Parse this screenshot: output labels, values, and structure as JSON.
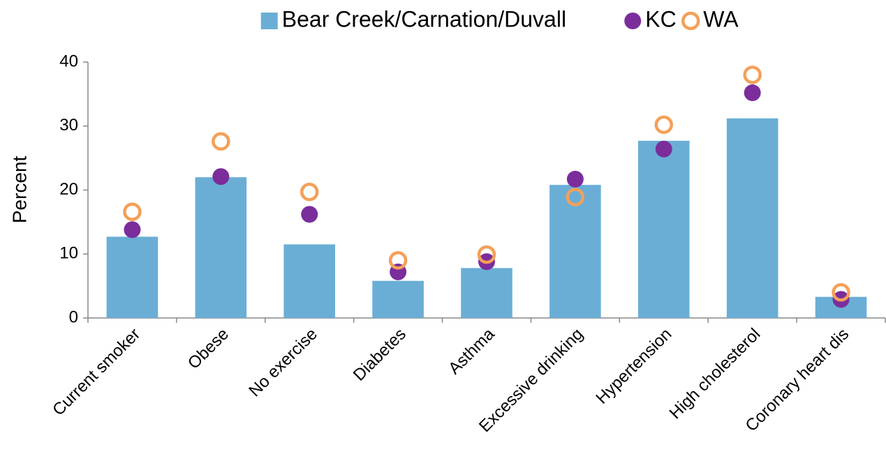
{
  "chart_data": {
    "type": "bar",
    "y_label": "Percent",
    "categories": [
      "Current smoker",
      "Obese",
      "No exercise",
      "Diabetes",
      "Asthma",
      "Excessive drinking",
      "Hypertension",
      "High cholesterol",
      "Coronary heart dis"
    ],
    "series": [
      {
        "name": "Bear Creek/Carnation/Duvall",
        "type": "bar",
        "color": "#6aaed6",
        "values": [
          12.7,
          22.0,
          11.5,
          5.8,
          7.8,
          20.8,
          27.7,
          31.2,
          3.3
        ]
      },
      {
        "name": "KC",
        "type": "dot",
        "color": "#7b2d9b",
        "values": [
          13.8,
          22.1,
          16.2,
          7.2,
          8.8,
          21.7,
          26.4,
          35.2,
          2.9
        ]
      },
      {
        "name": "WA",
        "type": "ring",
        "color": "#f4a058",
        "values": [
          16.6,
          27.6,
          19.7,
          9.0,
          9.9,
          18.9,
          30.2,
          38.0,
          4.0
        ]
      }
    ],
    "ylim": [
      0,
      40
    ],
    "yticks": [
      0,
      10,
      20,
      30,
      40
    ],
    "grid": false,
    "legend": "top"
  }
}
